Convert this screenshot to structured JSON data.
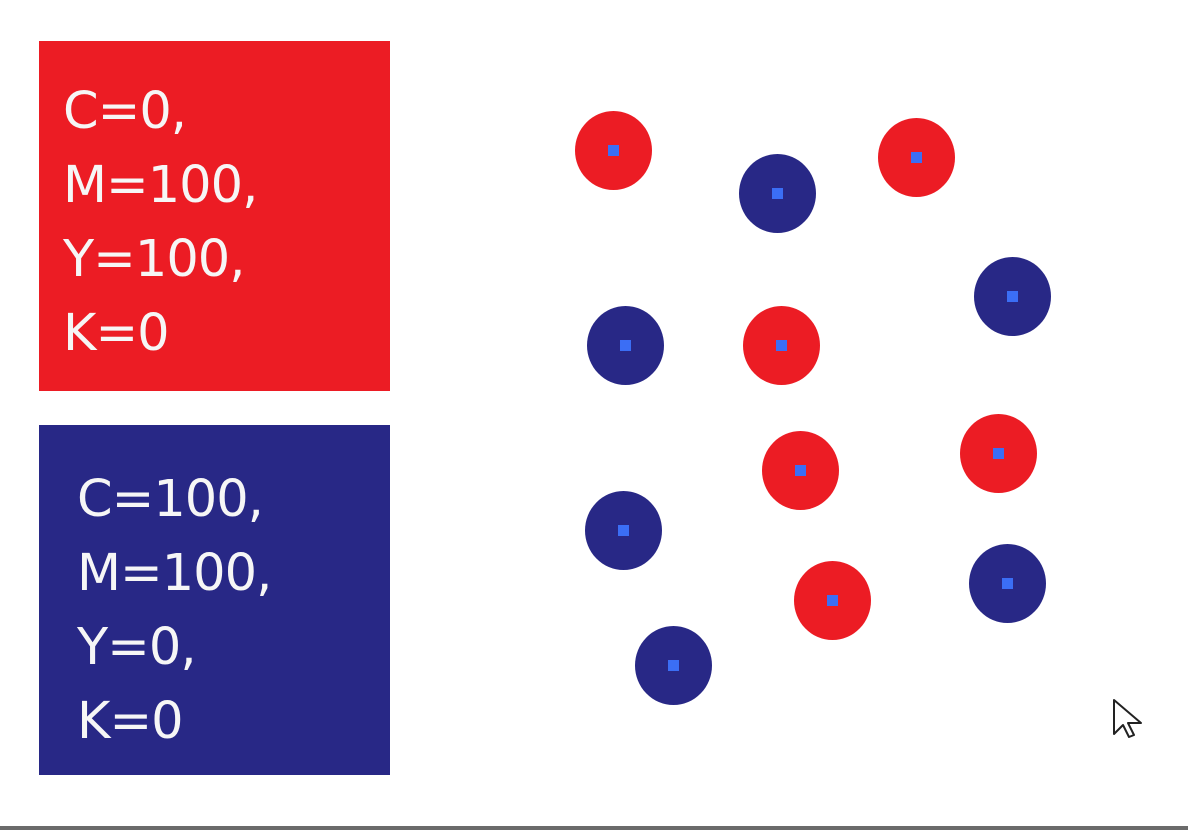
{
  "colors": {
    "red": "#ec1c24",
    "blue": "#282886",
    "marker": "#3b6ef5"
  },
  "swatches": {
    "red": {
      "lines": [
        "C=0,",
        "M=100,",
        "Y=100,",
        "K=0"
      ]
    },
    "blue": {
      "lines": [
        "C=100,",
        "M=100,",
        "Y=0,",
        "K=0"
      ]
    }
  },
  "dots": [
    {
      "color": "red"
    },
    {
      "color": "blue"
    },
    {
      "color": "red"
    },
    {
      "color": "blue"
    },
    {
      "color": "blue"
    },
    {
      "color": "red"
    },
    {
      "color": "red"
    },
    {
      "color": "blue"
    },
    {
      "color": "red"
    },
    {
      "color": "red"
    },
    {
      "color": "blue"
    },
    {
      "color": "blue"
    }
  ],
  "cursor": {
    "icon": "arrow-cursor-icon"
  }
}
